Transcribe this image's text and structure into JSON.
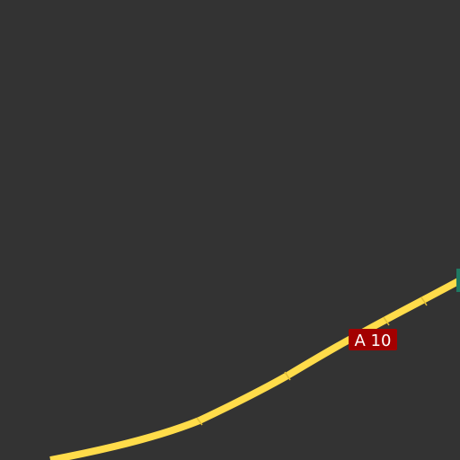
{
  "map": {
    "background_color": "#333333",
    "road": {
      "ref": "A 10",
      "class": "motorway",
      "color": "#ffdc4a",
      "casing_color": "#e0bd36"
    },
    "shields": [
      {
        "label": "A 10",
        "bg_color": "#a30000",
        "text_color": "#ffffff"
      }
    ],
    "edge_marker": {
      "color": "#1f7a63"
    }
  }
}
